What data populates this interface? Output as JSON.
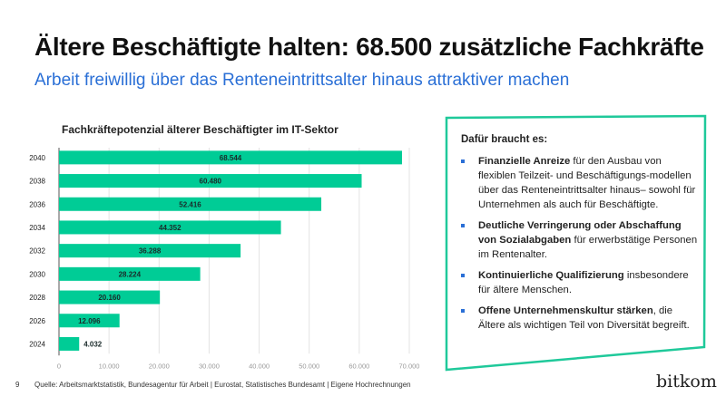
{
  "header": {
    "title": "Ältere Beschäftigte halten: 68.500 zusätzliche Fachkräfte",
    "subtitle": "Arbeit freiwillig über das Renteneintrittsalter hinaus attraktiver machen"
  },
  "chart_data": {
    "type": "bar",
    "orientation": "horizontal",
    "title": "Fachkräftepotenzial älterer Beschäftigter im IT-Sektor",
    "categories": [
      "2040",
      "2038",
      "2036",
      "2034",
      "2032",
      "2030",
      "2028",
      "2026",
      "2024"
    ],
    "values": [
      68544,
      60480,
      52416,
      44352,
      36288,
      28224,
      20160,
      12096,
      4032
    ],
    "value_labels": [
      "68.544",
      "60.480",
      "52.416",
      "44.352",
      "36.288",
      "28.224",
      "20.160",
      "12.096",
      "4.032"
    ],
    "xticks": [
      "0",
      "10.000",
      "20.000",
      "30.000",
      "40.000",
      "50.000",
      "60.000",
      "70.000"
    ],
    "xlim": [
      0,
      70000
    ],
    "grid": true,
    "bar_color": "#00cc96"
  },
  "panel": {
    "heading": "Dafür braucht es:",
    "items": [
      {
        "bold": "Finanzielle Anreize",
        "text": " für den Ausbau von flexiblen Teilzeit- und Beschäftigungs-modellen über das Renteneintrittsalter hinaus– sowohl für Unternehmen als auch für Beschäftigte."
      },
      {
        "bold": "Deutliche Verringerung oder Abschaffung von Sozialabgaben",
        "text": " für erwerbstätige Personen im Rentenalter."
      },
      {
        "bold": "Kontinuierliche Qualifizierung",
        "text": " insbesondere für ältere Menschen."
      },
      {
        "bold": "Offene Unternehmenskultur stärken",
        "text": ", die Ältere als wichtigen Teil von Diversität begreift."
      }
    ],
    "border_color": "#1fc99a",
    "bullet_color": "#2a6fd6"
  },
  "footer": {
    "page": "9",
    "source": "Quelle: Arbeitsmarktstatistik, Bundesagentur für Arbeit | Eurostat, Statistisches Bundesamt | Eigene Hochrechnungen",
    "logo": "bitkom"
  }
}
